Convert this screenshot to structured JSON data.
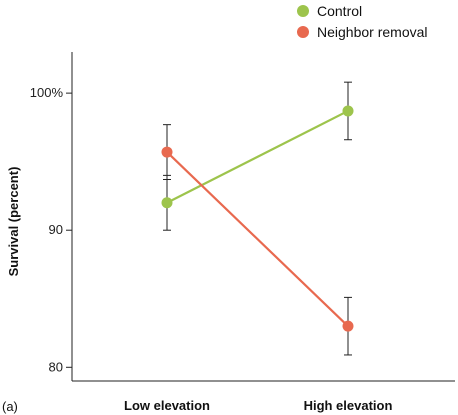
{
  "panel_label": "(a)",
  "chart_data": {
    "type": "line",
    "ylabel": "Survival (percent)",
    "xlabel": "",
    "categories": [
      "Low elevation",
      "High elevation"
    ],
    "ylim": [
      79,
      103
    ],
    "yticks": [
      {
        "value": 80,
        "label": "80"
      },
      {
        "value": 90,
        "label": "90"
      },
      {
        "value": 100,
        "label": "100%"
      }
    ],
    "legend_position": "top-right",
    "series": [
      {
        "name": "Control",
        "color": "#9dc44c",
        "values": [
          92.0,
          98.7
        ],
        "error": [
          2.0,
          2.1
        ]
      },
      {
        "name": "Neighbor removal",
        "color": "#e8694f",
        "values": [
          95.7,
          83.0
        ],
        "error": [
          2.0,
          2.1
        ]
      }
    ]
  }
}
